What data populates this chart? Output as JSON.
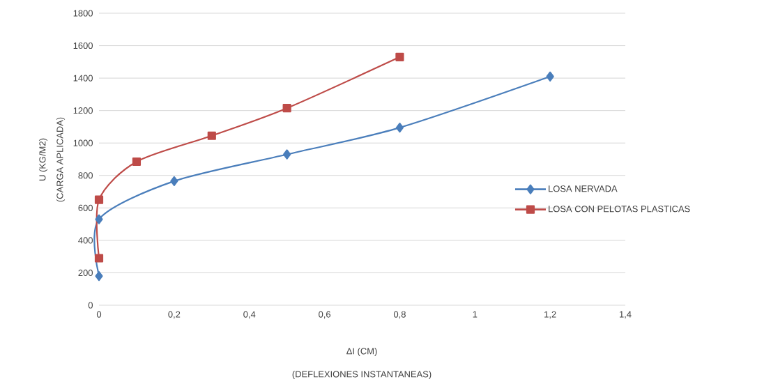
{
  "chart_data": {
    "type": "line",
    "xlabel": "ΔI (CM)",
    "ylabel": "U (KG/M2)",
    "annotations": [
      "(DEFLEXIONES INSTANTANEAS)",
      "(CARGA APLICADA)"
    ],
    "series": [
      {
        "name": "LOSA NERVADA",
        "color": "#4a7ebb",
        "marker": "diamond",
        "x": [
          0,
          0,
          0.2,
          0.5,
          0.8,
          1.2
        ],
        "values": [
          180,
          530,
          765,
          930,
          1095,
          1410
        ]
      },
      {
        "name": "LOSA CON PELOTAS PLASTICAS",
        "color": "#be4b48",
        "marker": "square",
        "x": [
          0,
          0,
          0.1,
          0.3,
          0.5,
          0.8
        ],
        "values": [
          290,
          650,
          885,
          1045,
          1215,
          1530
        ]
      }
    ],
    "xlim": [
      0,
      1.4
    ],
    "ylim": [
      0,
      1800
    ],
    "xticks": [
      0,
      {
        "value": 0.2,
        "label": "0,2"
      },
      {
        "value": 0.4,
        "label": "0,4"
      },
      {
        "value": 0.6,
        "label": "0,6"
      },
      {
        "value": 0.8,
        "label": "0,8"
      },
      1,
      {
        "value": 1.2,
        "label": "1,2"
      },
      {
        "value": 1.4,
        "label": "1,4"
      }
    ],
    "yticks": [
      0,
      200,
      400,
      600,
      800,
      1000,
      1200,
      1400,
      1600,
      1800
    ],
    "grid": "y",
    "legend": "right",
    "line_style": "solid"
  }
}
